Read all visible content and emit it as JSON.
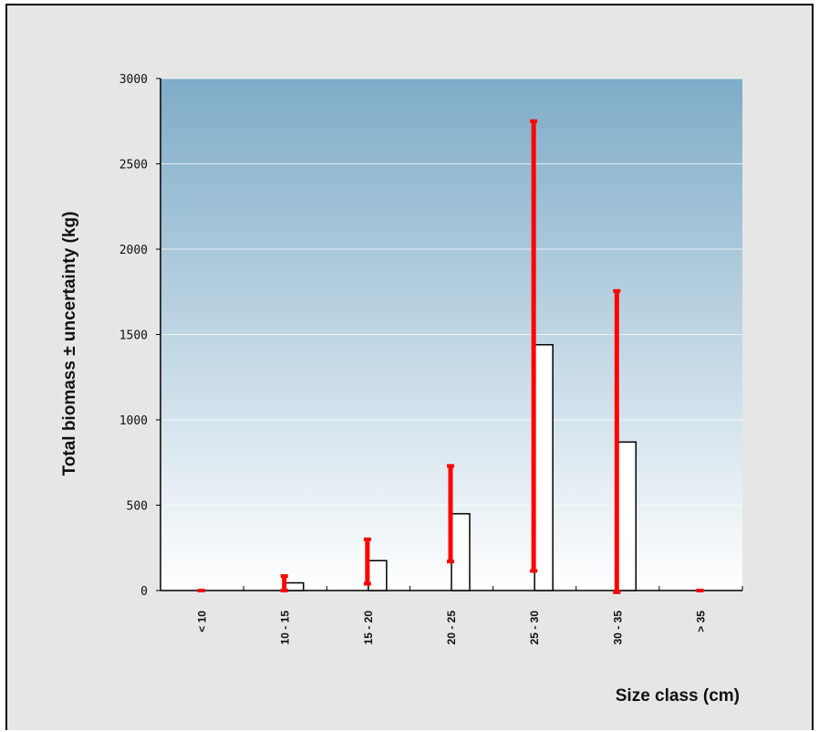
{
  "chart_data": {
    "type": "bar",
    "categories": [
      "< 10",
      "10 - 15",
      "15 - 20",
      "20 - 25",
      "25 - 30",
      "30 - 35",
      "> 35"
    ],
    "values": [
      0,
      45,
      175,
      450,
      1440,
      870,
      0
    ],
    "error_low": [
      0,
      0,
      40,
      170,
      115,
      -10,
      0
    ],
    "error_high": [
      0,
      85,
      300,
      730,
      2750,
      1755,
      0
    ],
    "xlabel": "Size class (cm)",
    "ylabel": "Total biomass ± uncertainty (kg)",
    "ylim": [
      0,
      3000
    ],
    "yticks": [
      "0",
      "500",
      "1000",
      "1500",
      "2000",
      "2500",
      "3000"
    ],
    "grid": true,
    "colors": {
      "plot_top": "#7eacc8",
      "plot_bottom": "#ffffff",
      "bar_fill": "#ffffff",
      "bar_stroke": "#000000",
      "error_bar": "#ff0000",
      "background": "#e6e6e6"
    }
  }
}
